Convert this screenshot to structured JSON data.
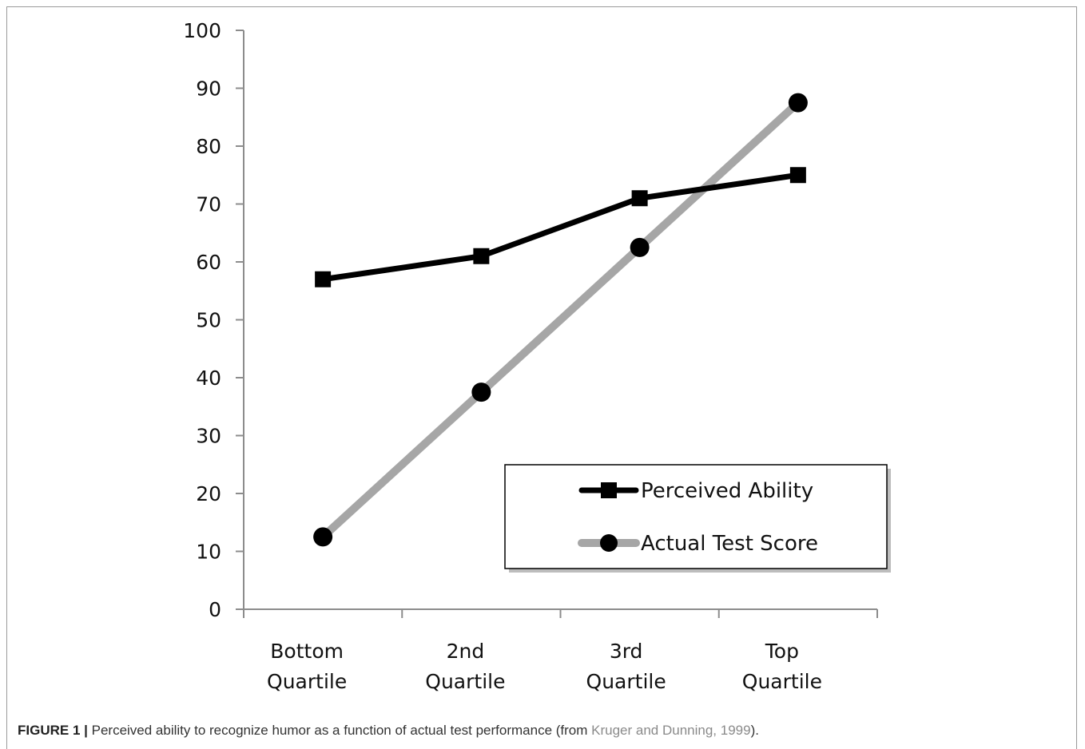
{
  "chart_data": {
    "type": "line",
    "categories": [
      [
        "Bottom",
        "Quartile"
      ],
      [
        "2nd",
        "Quartile"
      ],
      [
        "3rd",
        "Quartile"
      ],
      [
        "Top",
        "Quartile"
      ]
    ],
    "series": [
      {
        "name": "Perceived Ability",
        "values": [
          57,
          61,
          71,
          75
        ],
        "color": "#000000",
        "marker": "square"
      },
      {
        "name": "Actual Test Score",
        "values": [
          12.5,
          37.5,
          62.5,
          87.5
        ],
        "color": "#a6a6a6",
        "marker": "circle"
      }
    ],
    "ylim": [
      0,
      100
    ],
    "yticks": [
      0,
      10,
      20,
      30,
      40,
      50,
      60,
      70,
      80,
      90,
      100
    ],
    "grid": false,
    "legend_position": "bottom-right"
  },
  "caption": {
    "figure_label": "FIGURE 1 |",
    "text": " Perceived ability to recognize humor as a function of actual test performance (from ",
    "reference_authors": "Kruger and Dunning,",
    "reference_year": " 1999",
    "suffix": ")."
  }
}
